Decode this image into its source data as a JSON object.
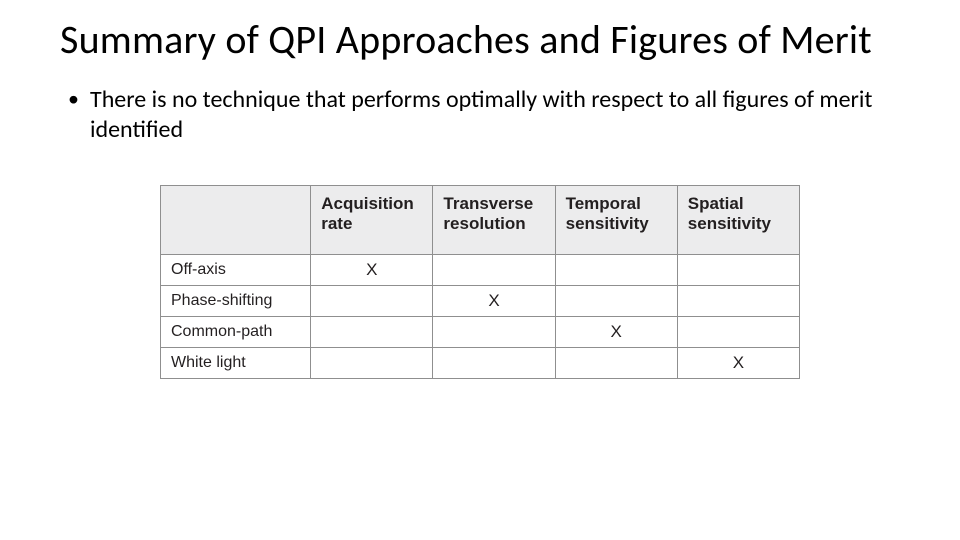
{
  "title": "Summary of QPI Approaches and Figures of Merit",
  "bullet": "There is no technique that performs optimally with respect to all figures of merit identified",
  "table": {
    "type": "table",
    "header_bg": "#ececed",
    "body_bg": "#ffffff",
    "border_color": "#8f8f8f",
    "header_text_color": "#231f20",
    "body_text_color": "#231f20",
    "header_fontsize_pt": 13,
    "row_fontsize_pt": 12,
    "mark_char": "X",
    "columns": [
      "Acquisition rate",
      "Transverse resolution",
      "Temporal sensitivity",
      "Spatial sensitivity"
    ],
    "rows": [
      {
        "label": "Off-axis",
        "marks": [
          true,
          false,
          false,
          false
        ]
      },
      {
        "label": "Phase-shifting",
        "marks": [
          false,
          true,
          false,
          false
        ]
      },
      {
        "label": "Common-path",
        "marks": [
          false,
          false,
          true,
          false
        ]
      },
      {
        "label": "White light",
        "marks": [
          false,
          false,
          false,
          true
        ]
      }
    ]
  }
}
